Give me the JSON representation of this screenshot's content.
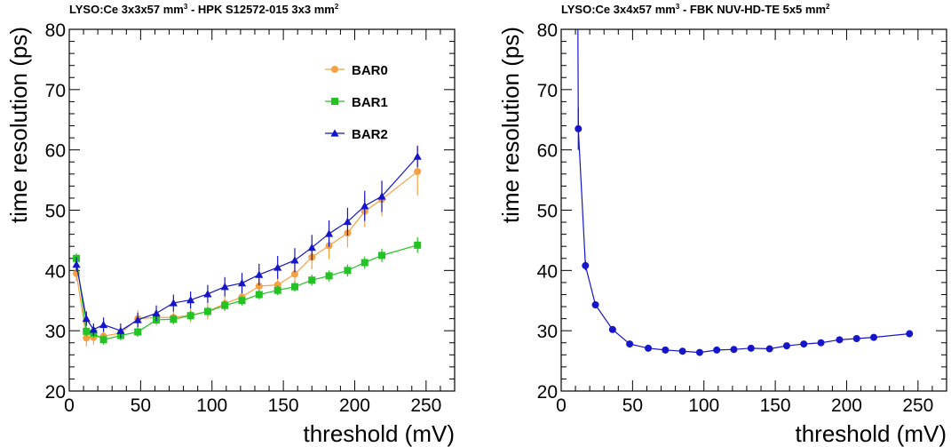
{
  "chart_data": [
    {
      "type": "line",
      "title": "LYSO:Ce 3x3x57 mm",
      "title_sup1": "3",
      "title_mid": " - HPK S12572-015 3x3 mm",
      "title_sup2": "2",
      "xlabel": "threshold (mV)",
      "ylabel": "time resolution (ps)",
      "xlim": [
        0,
        270
      ],
      "ylim": [
        20,
        80
      ],
      "xticks": [
        0,
        50,
        100,
        150,
        200,
        250
      ],
      "yticks": [
        20,
        30,
        40,
        50,
        60,
        70,
        80
      ],
      "grid": false,
      "legend": "top-right",
      "series": [
        {
          "name": "BAR0",
          "color": "#f5a142",
          "marker": "circle",
          "x": [
            5,
            12,
            17,
            24,
            36,
            48,
            61,
            73,
            85,
            97,
            109,
            121,
            133,
            146,
            158,
            170,
            182,
            195,
            207,
            219,
            244
          ],
          "y": [
            39.5,
            28.8,
            28.9,
            29.1,
            29.6,
            32.0,
            32.2,
            32.2,
            32.6,
            33.2,
            34.5,
            35.6,
            37.4,
            37.6,
            39.4,
            42.2,
            44.1,
            46.2,
            49.8,
            51.8,
            56.4
          ],
          "err": [
            1.2,
            1.4,
            1.2,
            1.0,
            1.0,
            1.4,
            1.2,
            1.2,
            1.2,
            1.3,
            1.3,
            1.4,
            1.6,
            1.6,
            1.8,
            2.0,
            2.2,
            2.4,
            2.6,
            2.8,
            4.0
          ]
        },
        {
          "name": "BAR1",
          "color": "#22c322",
          "marker": "square",
          "x": [
            5,
            12,
            17,
            24,
            36,
            48,
            61,
            73,
            85,
            97,
            109,
            121,
            133,
            146,
            158,
            170,
            182,
            195,
            207,
            219,
            244
          ],
          "y": [
            42.0,
            29.9,
            29.6,
            28.5,
            29.2,
            29.8,
            31.8,
            31.9,
            32.5,
            33.2,
            34.2,
            35.0,
            36.0,
            36.7,
            37.3,
            38.4,
            39.1,
            40.0,
            41.3,
            42.5,
            44.2
          ],
          "err": [
            0.8,
            0.8,
            0.8,
            0.8,
            0.8,
            0.8,
            0.8,
            0.8,
            0.8,
            0.8,
            0.8,
            0.8,
            0.8,
            0.8,
            0.8,
            0.9,
            0.9,
            1.0,
            1.0,
            1.1,
            1.3
          ]
        },
        {
          "name": "BAR2",
          "color": "#1515c9",
          "marker": "triangle",
          "x": [
            5,
            12,
            17,
            24,
            36,
            48,
            61,
            73,
            85,
            97,
            109,
            121,
            133,
            146,
            158,
            170,
            182,
            195,
            207,
            219,
            244
          ],
          "y": [
            41.0,
            32.0,
            30.2,
            31.0,
            30.0,
            31.8,
            32.9,
            34.6,
            35.1,
            36.1,
            37.3,
            37.9,
            39.3,
            40.5,
            41.7,
            43.8,
            46.1,
            48.1,
            50.7,
            52.3,
            58.9
          ],
          "err": [
            1.2,
            1.2,
            1.0,
            1.2,
            1.2,
            1.2,
            1.3,
            1.4,
            1.4,
            1.5,
            1.6,
            1.7,
            1.8,
            1.9,
            2.0,
            2.1,
            2.2,
            2.3,
            2.5,
            2.6,
            1.8
          ]
        }
      ]
    },
    {
      "type": "line",
      "title": "LYSO:Ce 3x4x57 mm",
      "title_sup1": "3",
      "title_mid": " - FBK NUV-HD-TE 5x5 mm",
      "title_sup2": "2",
      "xlabel": "threshold (mV)",
      "ylabel": "time resolution (ps)",
      "xlim": [
        0,
        270
      ],
      "ylim": [
        20,
        80
      ],
      "xticks": [
        0,
        50,
        100,
        150,
        200,
        250
      ],
      "yticks": [
        20,
        30,
        40,
        50,
        60,
        70,
        80
      ],
      "grid": false,
      "series": [
        {
          "color": "#1515c9",
          "marker": "circle",
          "x": [
            12,
            17,
            24,
            36,
            48,
            61,
            73,
            85,
            97,
            109,
            121,
            133,
            146,
            158,
            170,
            182,
            195,
            207,
            219,
            244
          ],
          "y": [
            63.5,
            40.8,
            34.3,
            30.2,
            27.8,
            27.1,
            26.8,
            26.6,
            26.4,
            26.8,
            26.9,
            27.1,
            27.0,
            27.5,
            27.8,
            28.0,
            28.5,
            28.7,
            28.9,
            29.5
          ],
          "err": [
            3.5,
            0.8,
            0.6,
            0.5,
            0.4,
            0.4,
            0.4,
            0.4,
            0.4,
            0.4,
            0.4,
            0.4,
            0.4,
            0.4,
            0.4,
            0.4,
            0.5,
            0.5,
            0.5,
            0.6
          ],
          "steep_line_from_top": true
        }
      ]
    }
  ]
}
